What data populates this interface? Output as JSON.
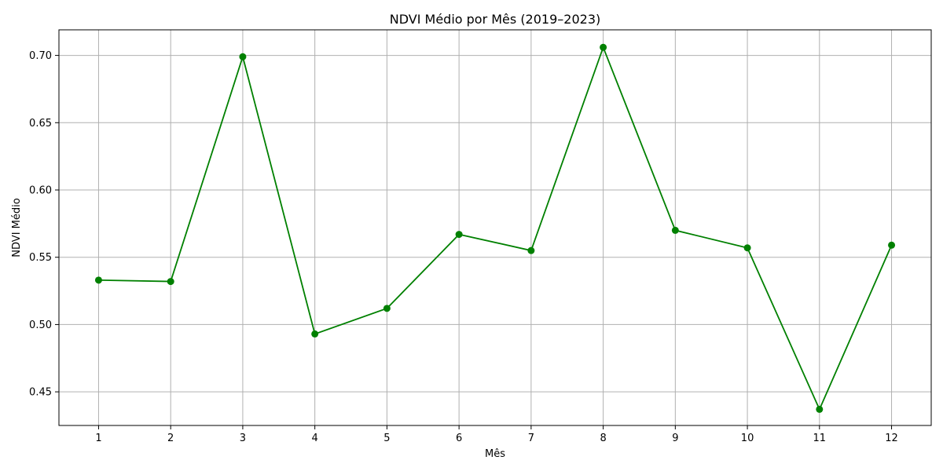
{
  "chart_data": {
    "type": "line",
    "title": "NDVI Médio por Mês (2019–2023)",
    "xlabel": "Mês",
    "ylabel": "NDVI Médio",
    "x": [
      1,
      2,
      3,
      4,
      5,
      6,
      7,
      8,
      9,
      10,
      11,
      12
    ],
    "x_tick_labels": [
      "1",
      "2",
      "3",
      "4",
      "5",
      "6",
      "7",
      "8",
      "9",
      "10",
      "11",
      "12"
    ],
    "y_ticks": [
      0.45,
      0.5,
      0.55,
      0.6,
      0.65,
      0.7
    ],
    "y_tick_labels": [
      "0.45",
      "0.50",
      "0.55",
      "0.60",
      "0.65",
      "0.70"
    ],
    "xlim": [
      0.45,
      12.55
    ],
    "ylim": [
      0.425,
      0.719
    ],
    "grid": true,
    "series": [
      {
        "color": "#008000",
        "marker": "circle",
        "values": [
          0.533,
          0.532,
          0.699,
          0.493,
          0.512,
          0.567,
          0.555,
          0.706,
          0.57,
          0.557,
          0.437,
          0.559
        ]
      }
    ]
  }
}
